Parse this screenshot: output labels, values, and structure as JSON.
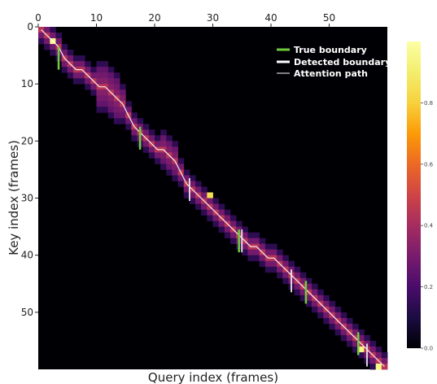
{
  "chart_data": {
    "type": "heatmap",
    "title": "",
    "xlabel": "Query index (frames)",
    "ylabel": "Key index (frames)",
    "xlim": [
      0,
      60
    ],
    "ylim": [
      60,
      0
    ],
    "x_ticks": [
      "0",
      "10",
      "20",
      "30",
      "40",
      "50"
    ],
    "y_ticks": [
      "0",
      "10",
      "20",
      "30",
      "40",
      "50"
    ],
    "x_tick_values": [
      0,
      10,
      20,
      30,
      40,
      50
    ],
    "y_tick_values": [
      0,
      10,
      20,
      30,
      40,
      50
    ],
    "colormap": "inferno",
    "colorbar": {
      "range": [
        0,
        1
      ],
      "ticks": [
        "0.0",
        "0.2",
        "0.4",
        "0.6",
        "0.8"
      ],
      "tick_values": [
        0.0,
        0.2,
        0.4,
        0.6,
        0.8
      ]
    },
    "legend": {
      "placement": "top-right",
      "entries": [
        {
          "label": "True boundary",
          "color": "#6ecb3c"
        },
        {
          "label": "Detected boundary",
          "color": "#ffffff"
        },
        {
          "label": "Attention path",
          "color": "#ffffff"
        }
      ]
    },
    "attention_path": {
      "x": [
        0,
        1,
        2,
        3,
        4,
        5,
        6,
        7,
        8,
        9,
        10,
        11,
        12,
        13,
        14,
        15,
        16,
        17,
        18,
        19,
        20,
        21,
        22,
        23,
        24,
        25,
        26,
        27,
        28,
        29,
        30,
        31,
        32,
        33,
        34,
        35,
        36,
        37,
        38,
        39,
        40,
        41,
        42,
        43,
        44,
        45,
        46,
        47,
        48,
        49,
        50,
        51,
        52,
        53,
        54,
        55,
        56,
        57,
        58,
        59
      ],
      "y": [
        0,
        1,
        2,
        3,
        5,
        6,
        7,
        7,
        8,
        9,
        10,
        10,
        11,
        12,
        13,
        15,
        17,
        18,
        19,
        20,
        21,
        21,
        22,
        23,
        25,
        27,
        28,
        29,
        30,
        31,
        32,
        33,
        34,
        35,
        36,
        37,
        38,
        38,
        39,
        40,
        40,
        41,
        42,
        43,
        44,
        45,
        46,
        47,
        48,
        49,
        50,
        51,
        52,
        53,
        54,
        55,
        56,
        57,
        58,
        59
      ]
    },
    "bright_cells": [
      {
        "x": 2,
        "y": 2,
        "value": 0.95
      },
      {
        "x": 29,
        "y": 29,
        "value": 0.85
      },
      {
        "x": 55,
        "y": 56,
        "value": 0.95
      },
      {
        "x": 58,
        "y": 59,
        "value": 0.95
      }
    ],
    "true_boundaries": [
      3.5,
      17.5,
      34.5,
      46,
      55
    ],
    "detected_boundaries": [
      26,
      35,
      43.5,
      56.5
    ]
  }
}
